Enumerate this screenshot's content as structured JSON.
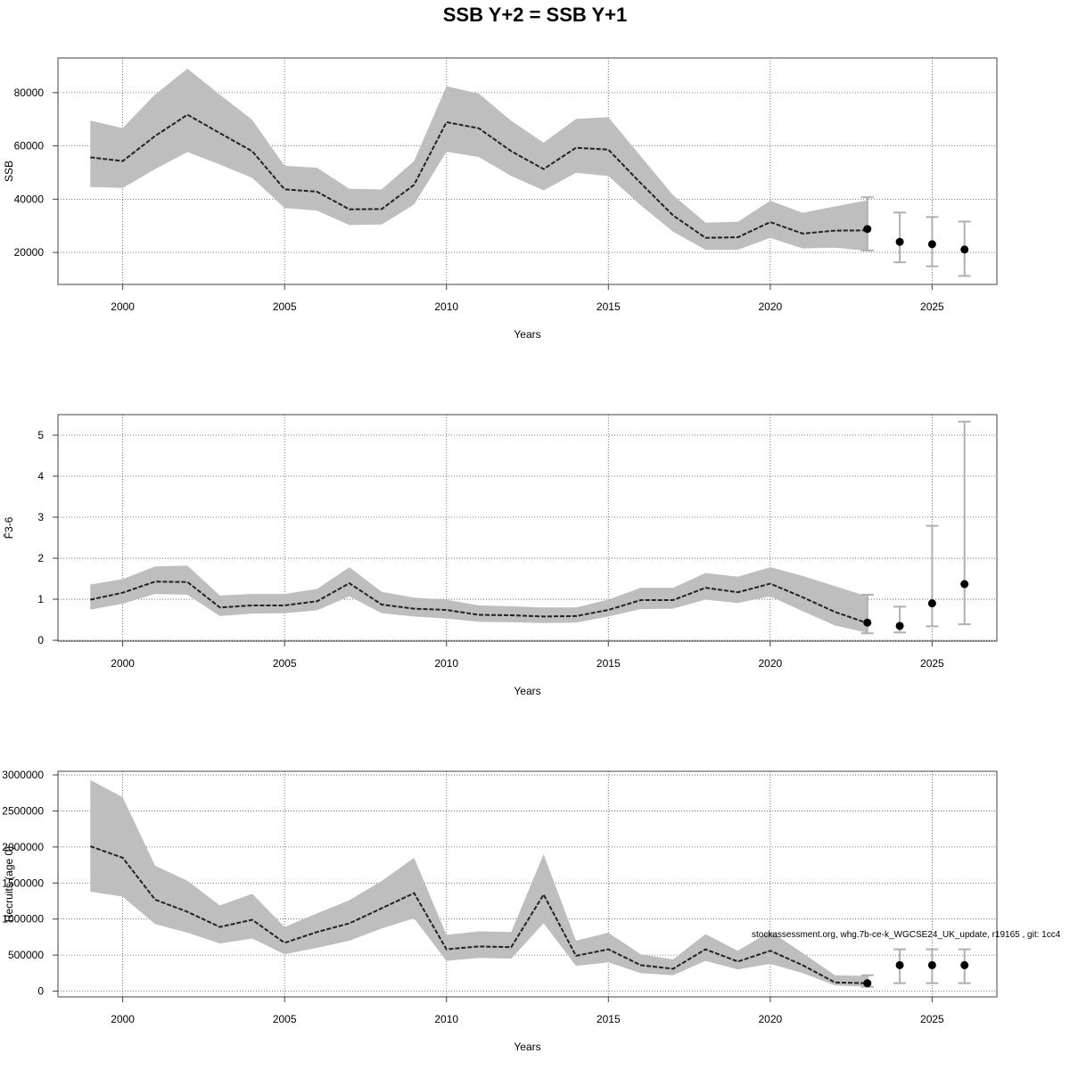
{
  "title": "SSB Y+2 = SSB Y+1",
  "footnote": "stockassessment.org, whg.7b-ce-k_WGCSE24_UK_update, r19165 , git: 1cc4",
  "colors": {
    "band": "#bebebe",
    "line": "#222222",
    "errorbar": "#b0b0b0",
    "point": "#000000",
    "grid": "#555555",
    "frame": "#444444"
  },
  "chart_data": [
    {
      "type": "line",
      "panel": "ssb",
      "xlabel": "Years",
      "ylabel": "SSB",
      "xlim": [
        1998,
        2027
      ],
      "ylim": [
        8000,
        93000
      ],
      "xticks": [
        2000,
        2005,
        2010,
        2015,
        2020,
        2025
      ],
      "yticks": [
        20000,
        40000,
        60000,
        80000
      ],
      "ytick_labels": [
        "20000",
        "40000",
        "60000",
        "80000"
      ],
      "grid": true,
      "years": [
        1999,
        2000,
        2001,
        2002,
        2003,
        2004,
        2005,
        2006,
        2007,
        2008,
        2009,
        2010,
        2011,
        2012,
        2013,
        2014,
        2015,
        2016,
        2017,
        2018,
        2019,
        2020,
        2021,
        2022,
        2023
      ],
      "estimate": [
        55700,
        54300,
        63700,
        71700,
        64800,
        58000,
        43700,
        42800,
        36200,
        36300,
        45400,
        68900,
        66600,
        58000,
        51300,
        59300,
        58600,
        46000,
        33900,
        25500,
        25700,
        31400,
        27100,
        28200,
        28300
      ],
      "lower": [
        44600,
        44200,
        51300,
        57700,
        53000,
        48000,
        36700,
        35700,
        30300,
        30500,
        38000,
        57800,
        55800,
        48700,
        43300,
        49900,
        48700,
        37700,
        27800,
        21000,
        21000,
        25500,
        21500,
        21800,
        20600
      ],
      "upper": [
        69500,
        66700,
        79300,
        89000,
        79200,
        69800,
        52500,
        51800,
        43900,
        43700,
        54300,
        82400,
        79600,
        69400,
        61200,
        70100,
        70800,
        56100,
        41500,
        31200,
        31500,
        39400,
        34900,
        37300,
        39600
      ],
      "forecast": {
        "years": [
          2023,
          2024,
          2025,
          2026
        ],
        "median": [
          28800,
          24000,
          23100,
          21100
        ],
        "lower": [
          20700,
          16300,
          14800,
          11200
        ],
        "upper": [
          40700,
          35000,
          33300,
          31600
        ]
      }
    },
    {
      "type": "line",
      "panel": "fbar",
      "xlabel": "Years",
      "ylabel": "F̄3-6",
      "xlim": [
        1998,
        2027
      ],
      "ylim": [
        -0.02,
        5.5
      ],
      "xticks": [
        2000,
        2005,
        2010,
        2015,
        2020,
        2025
      ],
      "yticks": [
        0,
        1,
        2,
        3,
        4,
        5
      ],
      "ytick_labels": [
        "0",
        "1",
        "2",
        "3",
        "4",
        "5"
      ],
      "grid": true,
      "years": [
        1999,
        2000,
        2001,
        2002,
        2003,
        2004,
        2005,
        2006,
        2007,
        2008,
        2009,
        2010,
        2011,
        2012,
        2013,
        2014,
        2015,
        2016,
        2017,
        2018,
        2019,
        2020,
        2021,
        2022,
        2023
      ],
      "estimate": [
        0.99,
        1.16,
        1.43,
        1.42,
        0.8,
        0.85,
        0.85,
        0.95,
        1.39,
        0.87,
        0.77,
        0.74,
        0.62,
        0.61,
        0.58,
        0.59,
        0.74,
        0.98,
        0.98,
        1.28,
        1.17,
        1.38,
        1.05,
        0.69,
        0.42
      ],
      "lower": [
        0.75,
        0.89,
        1.13,
        1.11,
        0.59,
        0.65,
        0.66,
        0.73,
        1.07,
        0.66,
        0.58,
        0.53,
        0.45,
        0.44,
        0.42,
        0.43,
        0.58,
        0.76,
        0.77,
        0.99,
        0.91,
        1.07,
        0.71,
        0.36,
        0.18
      ],
      "upper": [
        1.36,
        1.49,
        1.8,
        1.82,
        1.09,
        1.13,
        1.13,
        1.25,
        1.78,
        1.18,
        1.04,
        0.99,
        0.85,
        0.83,
        0.8,
        0.8,
        0.99,
        1.28,
        1.28,
        1.64,
        1.55,
        1.78,
        1.57,
        1.32,
        1.07
      ],
      "forecast": {
        "years": [
          2023,
          2024,
          2025,
          2026
        ],
        "median": [
          0.43,
          0.35,
          0.9,
          1.37
        ],
        "lower": [
          0.17,
          0.19,
          0.34,
          0.39
        ],
        "upper": [
          1.11,
          0.82,
          2.79,
          5.33
        ]
      }
    },
    {
      "type": "line",
      "panel": "recruits",
      "xlabel": "Years",
      "ylabel": "Recruits (age 0)",
      "xlim": [
        1998,
        2027
      ],
      "ylim": [
        -80000,
        3050000
      ],
      "xticks": [
        2000,
        2005,
        2010,
        2015,
        2020,
        2025
      ],
      "yticks": [
        0,
        500000,
        1000000,
        1500000,
        2000000,
        2500000,
        3000000
      ],
      "ytick_labels": [
        "0",
        "500000",
        "1000000",
        "1500000",
        "2000000",
        "2500000",
        "3000000"
      ],
      "grid": true,
      "years": [
        1999,
        2000,
        2001,
        2002,
        2003,
        2004,
        2005,
        2006,
        2007,
        2008,
        2009,
        2010,
        2011,
        2012,
        2013,
        2014,
        2015,
        2016,
        2017,
        2018,
        2019,
        2020,
        2021,
        2022,
        2023
      ],
      "estimate": [
        2010000,
        1850000,
        1270000,
        1100000,
        890000,
        990000,
        670000,
        820000,
        940000,
        1150000,
        1360000,
        580000,
        620000,
        610000,
        1340000,
        490000,
        580000,
        360000,
        310000,
        580000,
        410000,
        560000,
        360000,
        120000,
        110000
      ],
      "lower": [
        1380000,
        1310000,
        930000,
        810000,
        660000,
        730000,
        510000,
        600000,
        700000,
        870000,
        1010000,
        420000,
        460000,
        450000,
        940000,
        350000,
        400000,
        250000,
        220000,
        420000,
        300000,
        380000,
        250000,
        80000,
        60000
      ],
      "upper": [
        2930000,
        2690000,
        1740000,
        1530000,
        1190000,
        1350000,
        890000,
        1080000,
        1260000,
        1530000,
        1850000,
        780000,
        830000,
        820000,
        1900000,
        700000,
        810000,
        510000,
        440000,
        790000,
        560000,
        830000,
        530000,
        220000,
        210000
      ],
      "forecast": {
        "years": [
          2023,
          2024,
          2025,
          2026
        ],
        "median": [
          110000,
          360000,
          360000,
          360000
        ],
        "lower": [
          60000,
          110000,
          110000,
          110000
        ],
        "upper": [
          220000,
          580000,
          580000,
          580000
        ]
      }
    }
  ]
}
